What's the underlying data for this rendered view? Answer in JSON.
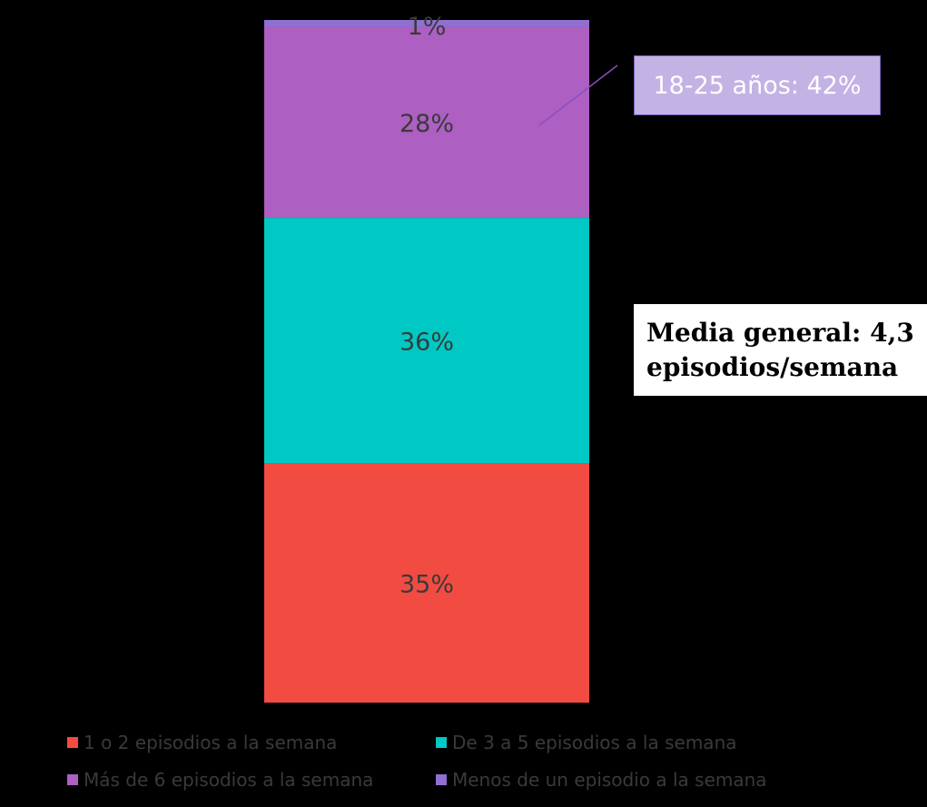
{
  "chart_data": {
    "type": "bar",
    "stacked": true,
    "categories": [
      ""
    ],
    "series": [
      {
        "name": "1 o 2 episodios a la semana",
        "values": [
          35
        ],
        "label": "35%",
        "color": "#f24b41"
      },
      {
        "name": "De 3 a 5 episodios a la semana",
        "values": [
          36
        ],
        "label": "36%",
        "color": "#00c8c4"
      },
      {
        "name": "Más de 6 episodios a la semana",
        "values": [
          28
        ],
        "label": "28%",
        "color": "#ad5fc2"
      },
      {
        "name": "Menos de un episodio a la semana",
        "values": [
          1
        ],
        "label": "1%",
        "color": "#8f6fd0"
      }
    ],
    "ylim": [
      0,
      100
    ],
    "legend_position": "bottom",
    "annotations": [
      {
        "text": "18-25 años: 42%",
        "target": "Más de 6 episodios a la semana"
      },
      {
        "text": "Media general: 4,3 episodios/semana"
      }
    ]
  },
  "callouts": {
    "age": "18-25 años: 42%",
    "mean_line1": "Media general: 4,3",
    "mean_line2": "episodios/semana",
    "age_bg": "#c3b2e4"
  },
  "legend": [
    {
      "label": "1 o 2 episodios a la semana",
      "color": "#f24b41"
    },
    {
      "label": "De 3 a 5 episodios a la semana",
      "color": "#00c8c4"
    },
    {
      "label": "Más de 6 episodios a la semana",
      "color": "#ad5fc2"
    },
    {
      "label": "Menos de un episodio a la semana",
      "color": "#8f6fd0"
    }
  ]
}
